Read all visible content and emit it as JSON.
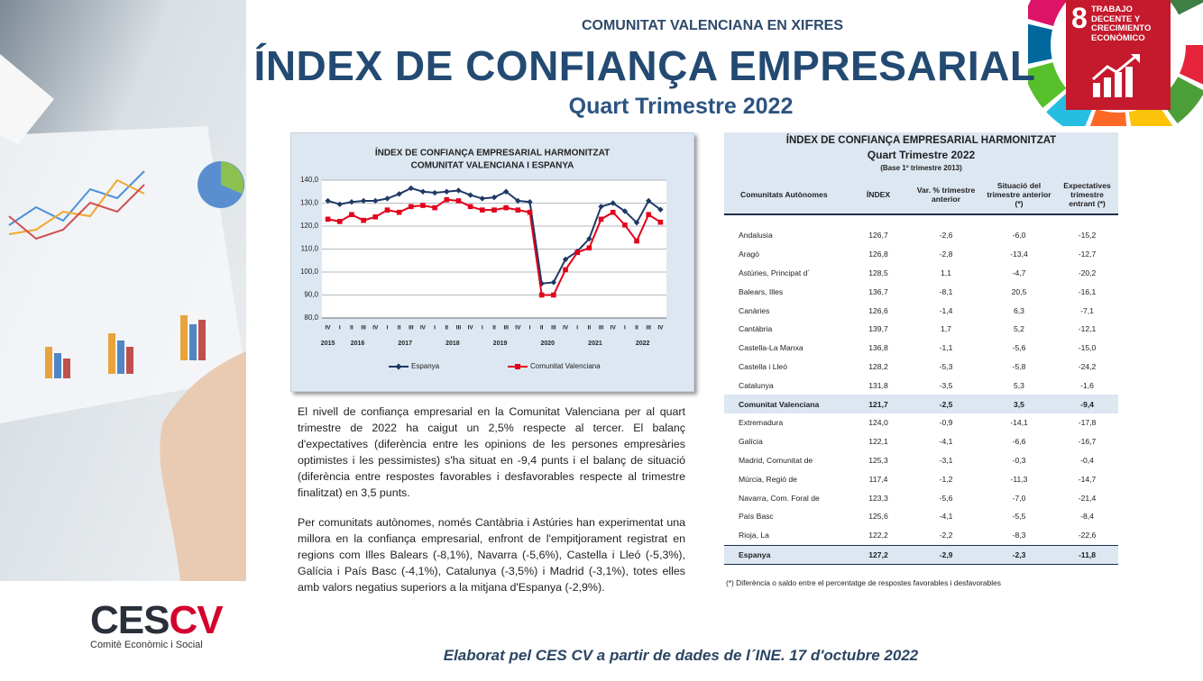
{
  "header": {
    "kicker": "COMUNITAT VALENCIANA EN XIFRES",
    "title": "ÍNDEX DE CONFIANÇA EMPRESARIAL",
    "subtitle": "Quart Trimestre 2022"
  },
  "badge": {
    "number": "8",
    "text": "TRABAJO DECENTE Y CRECIMIENTO ECONÓMICO"
  },
  "chart_data": {
    "type": "line",
    "title": "ÍNDEX DE CONFIANÇA EMPRESARIAL HARMONITZAT",
    "subtitle": "COMUNITAT VALENCIANA I ESPANYA",
    "categories": [
      "IV",
      "I",
      "II",
      "III",
      "IV",
      "I",
      "II",
      "III",
      "IV",
      "I",
      "II",
      "III",
      "IV",
      "I",
      "II",
      "III",
      "IV",
      "I",
      "II",
      "III",
      "IV",
      "I",
      "II",
      "III",
      "IV",
      "I",
      "II",
      "III",
      "IV"
    ],
    "groups": [
      {
        "label": "2015",
        "count": 1
      },
      {
        "label": "2016",
        "count": 4
      },
      {
        "label": "2017",
        "count": 4
      },
      {
        "label": "2018",
        "count": 4
      },
      {
        "label": "2019",
        "count": 4
      },
      {
        "label": "2020",
        "count": 4
      },
      {
        "label": "2021",
        "count": 4
      },
      {
        "label": "2022",
        "count": 4
      }
    ],
    "series": [
      {
        "name": "Espanya",
        "color": "#1f3864",
        "marker": "diamond",
        "values": [
          131,
          129.5,
          130.5,
          131,
          131,
          132,
          134,
          136.5,
          135,
          134.5,
          135,
          135.5,
          133.5,
          132,
          132.5,
          135,
          131,
          130.5,
          95,
          95.5,
          105.5,
          109,
          114.5,
          128.5,
          130,
          126.5,
          121.5,
          131,
          127.2
        ]
      },
      {
        "name": "Comunitat Valenciana",
        "color": "#e3001b",
        "marker": "square",
        "values": [
          123,
          122,
          125,
          122.5,
          124,
          127,
          126,
          128.5,
          129,
          128,
          131.5,
          131,
          128.5,
          127,
          127,
          128,
          127,
          126,
          90,
          90,
          101,
          108.5,
          110.5,
          123,
          126,
          120.5,
          113.5,
          125,
          121.7
        ]
      }
    ],
    "ylim": [
      80,
      140
    ],
    "yticks": [
      {
        "value": 80,
        "label": "80,0"
      },
      {
        "value": 90,
        "label": "90,0"
      },
      {
        "value": 100,
        "label": "100,0"
      },
      {
        "value": 110,
        "label": "110,0"
      },
      {
        "value": 120,
        "label": "120,0"
      },
      {
        "value": 130,
        "label": "130,0"
      },
      {
        "value": 140,
        "label": "140,0"
      }
    ],
    "grid": true
  },
  "table": {
    "title": "ÍNDEX DE CONFIANÇA EMPRESARIAL HARMONITZAT",
    "subtitle": "Quart Trimestre 2022",
    "note": "(Base 1º trimestre 2013)",
    "columns": [
      "Comunitats Autònomes",
      "ÍNDEX",
      "Var. % trimestre anterior",
      "Situació del trimestre anterior (*)",
      "Expectatives trimestre entrant (*)"
    ],
    "rows": [
      [
        "Andalusia",
        "126,7",
        "-2,6",
        "-6,0",
        "-15,2"
      ],
      [
        "Aragó",
        "126,8",
        "-2,8",
        "-13,4",
        "-12,7"
      ],
      [
        "Astúries, Principat d´",
        "128,5",
        "1,1",
        "-4,7",
        "-20,2"
      ],
      [
        "Balears, Illes",
        "136,7",
        "-8,1",
        "20,5",
        "-16,1"
      ],
      [
        "Canàries",
        "126,6",
        "-1,4",
        "6,3",
        "-7,1"
      ],
      [
        "Cantàbria",
        "139,7",
        "1,7",
        "5,2",
        "-12,1"
      ],
      [
        "Castella-La Manxa",
        "136,8",
        "-1,1",
        "-5,6",
        "-15,0"
      ],
      [
        "Castella i Lleó",
        "128,2",
        "-5,3",
        "-5,8",
        "-24,2"
      ],
      [
        "Catalunya",
        "131,8",
        "-3,5",
        "5,3",
        "-1,6"
      ],
      [
        "Comunitat Valenciana",
        "121,7",
        "-2,5",
        "3,5",
        "-9,4"
      ],
      [
        "Extremadura",
        "124,0",
        "-0,9",
        "-14,1",
        "-17,8"
      ],
      [
        "Galícia",
        "122,1",
        "-4,1",
        "-6,6",
        "-16,7"
      ],
      [
        "Madrid, Comunitat de",
        "125,3",
        "-3,1",
        "-0,3",
        "-0,4"
      ],
      [
        "Múrcia, Regió de",
        "117,4",
        "-1,2",
        "-11,3",
        "-14,7"
      ],
      [
        "Navarra, Com. Foral de",
        "123,3",
        "-5,6",
        "-7,0",
        "-21,4"
      ],
      [
        "País Basc",
        "125,6",
        "-4,1",
        "-5,5",
        "-8,4"
      ],
      [
        "Rioja, La",
        "122,2",
        "-2,2",
        "-8,3",
        "-22,6"
      ],
      [
        "Espanya",
        "127,2",
        "-2,9",
        "-2,3",
        "-11,8"
      ]
    ],
    "footnote": "(*)  Diferència o saldo entre el percentatge de respostes favorables i desfavorables"
  },
  "text": {
    "paragraphs": [
      "El nivell de confiança empresarial en la Comunitat Valenciana per al quart trimestre de 2022 ha caigut un 2,5% respecte al tercer. El balanç d'expectatives (diferència entre les opinions de les persones empresàries optimistes i les pessimistes) s'ha situat en -9,4 punts i el balanç de situació (diferència entre respostes favorables i desfavorables respecte al trimestre finalitzat) en 3,5 punts.",
      "Per comunitats autònomes, només Cantàbria i Astúries han experimentat una millora en la confiança empresarial, enfront de l'empitjorament registrat en regions com Illes Balears (-8,1%), Navarra (-5,6%), Castella i Lleó (-5,3%), Galícia i País Basc (-4,1%), Catalunya (-3,5%) i Madrid (-3,1%), totes elles amb valors negatius superiors a la mitjana d'Espanya (-2,9%)."
    ]
  },
  "logo": {
    "main": "CES",
    "accent": "CV",
    "caption": "Comitè Econòmic i Social"
  },
  "footer": "Elaborat pel CES CV a partir de dades de l´INE. 17 d'octubre 2022"
}
